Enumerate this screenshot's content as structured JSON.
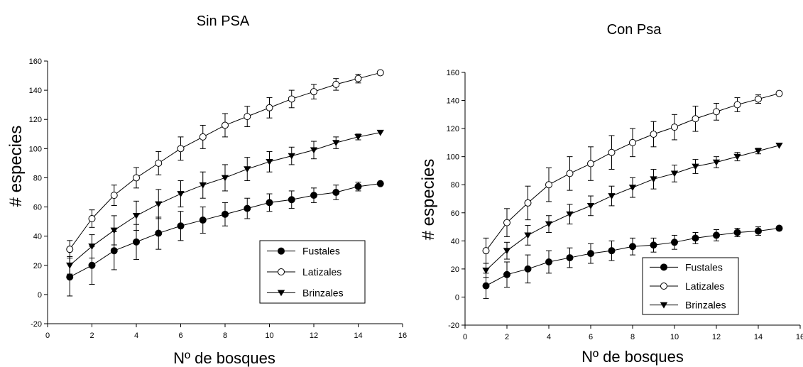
{
  "chart_data": [
    {
      "type": "line",
      "title": "Sin PSA",
      "xlabel": "Nº de bosques",
      "ylabel": "# especies",
      "xlim": [
        0,
        16
      ],
      "ylim": [
        -20,
        160
      ],
      "xticks": [
        "0",
        "2",
        "4",
        "6",
        "8",
        "10",
        "12",
        "14",
        "16"
      ],
      "yticks": [
        "-20",
        "0",
        "20",
        "40",
        "60",
        "80",
        "100",
        "120",
        "140",
        "160"
      ],
      "legend_position": "bottom-right",
      "series": [
        {
          "name": "Fustales",
          "marker": "filled-circle",
          "x": [
            1,
            2,
            3,
            4,
            5,
            6,
            7,
            8,
            9,
            10,
            11,
            12,
            13,
            14,
            15
          ],
          "y": [
            12,
            20,
            30,
            36,
            42,
            47,
            51,
            55,
            59,
            63,
            65,
            68,
            70,
            74,
            76
          ],
          "err": [
            13,
            13,
            13,
            12,
            11,
            10,
            9,
            8,
            7,
            6,
            6,
            5,
            5,
            3,
            0
          ]
        },
        {
          "name": "Latizales",
          "marker": "open-circle",
          "x": [
            1,
            2,
            3,
            4,
            5,
            6,
            7,
            8,
            9,
            10,
            11,
            12,
            13,
            14,
            15
          ],
          "y": [
            31,
            52,
            68,
            80,
            90,
            100,
            108,
            116,
            122,
            128,
            134,
            139,
            144,
            148,
            152
          ],
          "err": [
            6,
            6,
            7,
            7,
            8,
            8,
            8,
            8,
            7,
            7,
            6,
            5,
            4,
            3,
            0
          ]
        },
        {
          "name": "Brinzales",
          "marker": "filled-triangle-down",
          "x": [
            1,
            2,
            3,
            4,
            5,
            6,
            7,
            8,
            9,
            10,
            11,
            12,
            13,
            14,
            15
          ],
          "y": [
            20,
            33,
            44,
            54,
            62,
            69,
            75,
            80,
            86,
            91,
            95,
            99,
            104,
            108,
            111
          ],
          "err": [
            6,
            8,
            10,
            10,
            10,
            9,
            9,
            9,
            8,
            7,
            6,
            6,
            4,
            2,
            0
          ]
        }
      ]
    },
    {
      "type": "line",
      "title": "Con Psa",
      "xlabel": "Nº de bosques",
      "ylabel": "# especies",
      "xlim": [
        0,
        16
      ],
      "ylim": [
        -20,
        160
      ],
      "xticks": [
        "0",
        "2",
        "4",
        "6",
        "8",
        "10",
        "12",
        "14",
        "16"
      ],
      "yticks": [
        "-20",
        "0",
        "20",
        "40",
        "60",
        "80",
        "100",
        "120",
        "140",
        "160"
      ],
      "legend_position": "bottom-right",
      "series": [
        {
          "name": "Fustales",
          "marker": "filled-circle",
          "x": [
            1,
            2,
            3,
            4,
            5,
            6,
            7,
            8,
            9,
            10,
            11,
            12,
            13,
            14,
            15
          ],
          "y": [
            8,
            16,
            20,
            25,
            28,
            31,
            33,
            36,
            37,
            39,
            42,
            44,
            46,
            47,
            49
          ],
          "err": [
            9,
            9,
            10,
            8,
            7,
            7,
            7,
            6,
            5,
            5,
            4,
            4,
            3,
            3,
            0
          ]
        },
        {
          "name": "Latizales",
          "marker": "open-circle",
          "x": [
            1,
            2,
            3,
            4,
            5,
            6,
            7,
            8,
            9,
            10,
            11,
            12,
            13,
            14,
            15
          ],
          "y": [
            33,
            53,
            67,
            80,
            88,
            95,
            103,
            110,
            116,
            121,
            127,
            132,
            137,
            141,
            145
          ],
          "err": [
            9,
            10,
            12,
            12,
            12,
            12,
            12,
            10,
            9,
            9,
            9,
            6,
            5,
            3,
            0
          ]
        },
        {
          "name": "Brinzales",
          "marker": "filled-triangle-down",
          "x": [
            1,
            2,
            3,
            4,
            5,
            6,
            7,
            8,
            9,
            10,
            11,
            12,
            13,
            14,
            15
          ],
          "y": [
            19,
            33,
            44,
            52,
            59,
            65,
            72,
            78,
            84,
            88,
            93,
            96,
            100,
            104,
            108
          ],
          "err": [
            5,
            6,
            7,
            6,
            7,
            7,
            7,
            7,
            7,
            6,
            5,
            4,
            3,
            2,
            0
          ]
        }
      ]
    }
  ]
}
